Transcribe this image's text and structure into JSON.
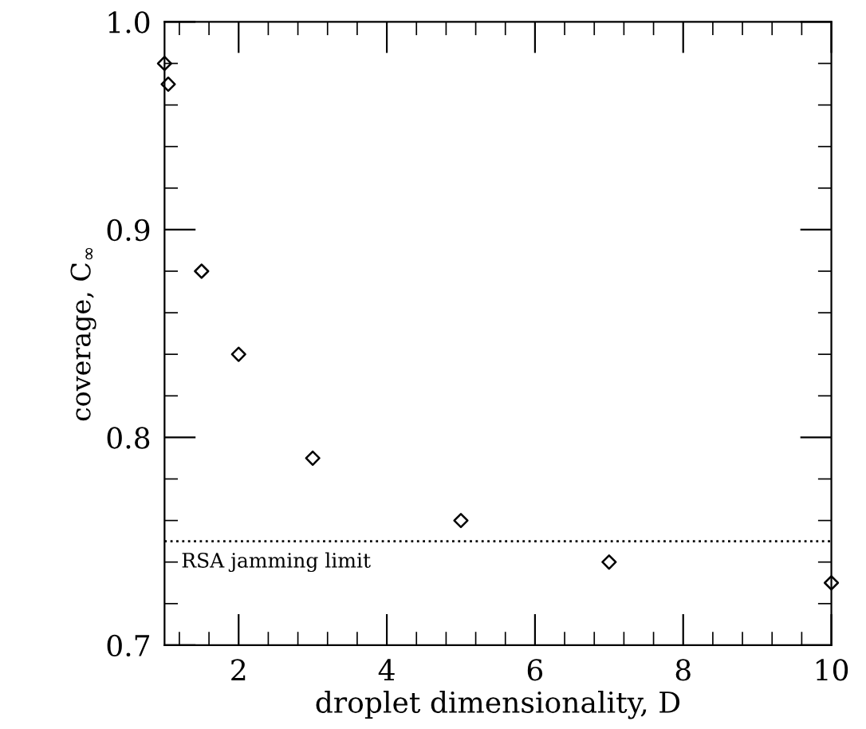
{
  "chart_data": {
    "type": "scatter",
    "xlabel": "droplet dimensionality, D",
    "ylabel": "coverage, C$_{∞}$",
    "x": [
      1.0,
      1.05,
      1.5,
      2,
      3,
      5,
      7,
      10
    ],
    "series": [
      {
        "color": "#000000",
        "values": [
          0.98,
          0.97,
          0.88,
          0.84,
          0.79,
          0.76,
          0.74,
          0.73
        ]
      }
    ],
    "marker": "diamond",
    "grid": false,
    "xlim": [
      1,
      10
    ],
    "ylim": [
      0.7,
      1.0
    ],
    "xticks": [
      {
        "value": 1.2,
        "label": null
      },
      {
        "value": 1.6,
        "label": null
      },
      2,
      {
        "value": 2.4,
        "label": null
      },
      {
        "value": 2.8,
        "label": null
      },
      {
        "value": 3.2,
        "label": null
      },
      {
        "value": 3.6,
        "label": null
      },
      4,
      {
        "value": 4.4,
        "label": null
      },
      {
        "value": 4.8,
        "label": null
      },
      {
        "value": 5.2,
        "label": null
      },
      {
        "value": 5.6,
        "label": null
      },
      6,
      {
        "value": 6.4,
        "label": null
      },
      {
        "value": 6.8,
        "label": null
      },
      {
        "value": 7.2,
        "label": null
      },
      {
        "value": 7.6,
        "label": null
      },
      8,
      {
        "value": 8.4,
        "label": null
      },
      {
        "value": 8.8,
        "label": null
      },
      {
        "value": 9.2,
        "label": null
      },
      {
        "value": 9.6,
        "label": null
      },
      10
    ],
    "yticks": [
      {
        "value": 0.7,
        "label": "0.7"
      },
      {
        "value": 0.72,
        "label": null
      },
      {
        "value": 0.74,
        "label": null
      },
      {
        "value": 0.76,
        "label": null
      },
      {
        "value": 0.78,
        "label": null
      },
      {
        "value": 0.8,
        "label": "0.8"
      },
      {
        "value": 0.82,
        "label": null
      },
      {
        "value": 0.84,
        "label": null
      },
      {
        "value": 0.86,
        "label": null
      },
      {
        "value": 0.88,
        "label": null
      },
      {
        "value": 0.9,
        "label": "0.9"
      },
      {
        "value": 0.92,
        "label": null
      },
      {
        "value": 0.94,
        "label": null
      },
      {
        "value": 0.96,
        "label": null
      },
      {
        "value": 0.98,
        "label": null
      },
      {
        "value": 1.0,
        "label": "1.0"
      }
    ],
    "ref_lines": [
      {
        "axis": "y",
        "value": 0.75,
        "label": "RSA jamming limit",
        "color": "#000000",
        "line_style": "dotted"
      }
    ]
  }
}
